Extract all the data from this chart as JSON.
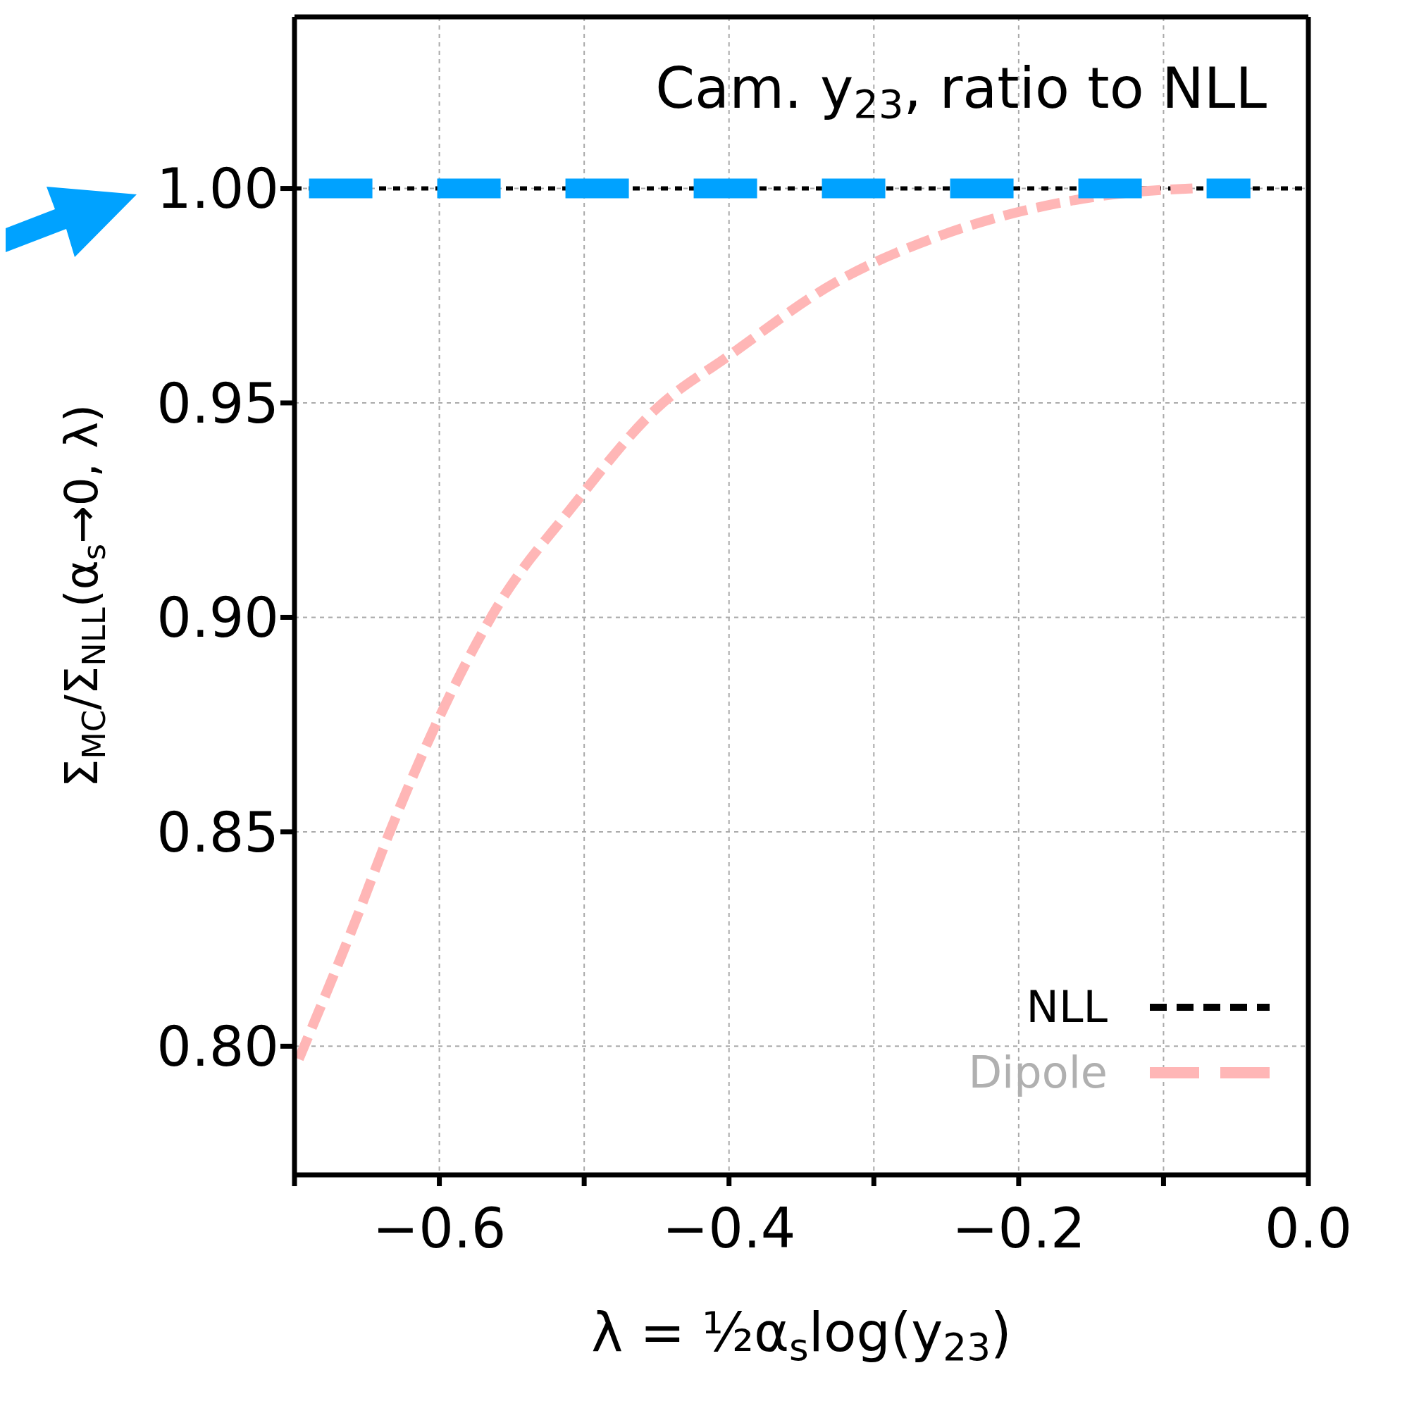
{
  "chart_data": {
    "type": "line",
    "title": "Cam. $_{}$y$_{23}$, ratio to NLL",
    "xlabel": "λ = ½α$_{s}$log(y$_{23}$)",
    "ylabel": "Σ$_{MC}$/Σ$_{NLL}$(α$_{s}$→0, λ)",
    "xlim": [
      -0.7,
      0.0
    ],
    "xticks": [
      {
        "value": -0.7,
        "label": null
      },
      -0.6,
      {
        "value": -0.5,
        "label": null
      },
      -0.4,
      {
        "value": -0.3,
        "label": null
      },
      -0.2,
      {
        "value": -0.1,
        "label": null
      },
      {
        "value": 0.0,
        "label": "0.0"
      }
    ],
    "ylim": [
      0.77,
      1.04
    ],
    "yticks": [
      {
        "value": 0.8,
        "label": "0.80"
      },
      0.85,
      {
        "value": 0.9,
        "label": "0.90"
      },
      0.95,
      {
        "value": 1.0,
        "label": "1.00"
      }
    ],
    "grid": true,
    "legend": "bottom right",
    "series": [
      {
        "name": "NLL",
        "color": "#000000",
        "line_style": "dotted",
        "x": [
          -0.7,
          0.0
        ],
        "values": [
          1.0,
          1.0
        ]
      },
      {
        "name": "Dipole",
        "color": "#ffb6b6",
        "line_style": "dashed",
        "x": [
          -0.697,
          -0.657,
          -0.633,
          -0.601,
          -0.559,
          -0.51,
          -0.449,
          -0.4,
          -0.327,
          -0.254,
          -0.181,
          -0.125,
          -0.08
        ],
        "values": [
          0.797,
          0.83,
          0.851,
          0.876,
          0.903,
          0.925,
          0.949,
          0.961,
          0.978,
          0.989,
          0.996,
          0.999,
          1.0
        ]
      },
      {
        "color": "#00a2ff",
        "line_style": "dashed",
        "x": [
          -0.69,
          -0.04
        ],
        "values": [
          1.0,
          1.0
        ]
      }
    ]
  }
}
